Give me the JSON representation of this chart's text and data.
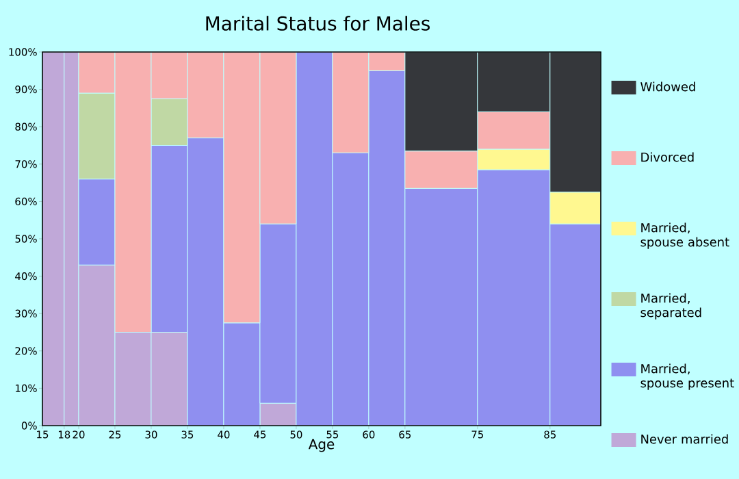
{
  "chart_data": {
    "type": "bar",
    "stacked": true,
    "title": "Marital Status for Males",
    "xlabel": "Age",
    "x": [
      16.5,
      19,
      22.5,
      27.5,
      32.5,
      37.5,
      42.5,
      47.5,
      52.5,
      57.5,
      62.5,
      70,
      80,
      88.5
    ],
    "xlim": [
      15,
      92
    ],
    "xticks": [
      15,
      18,
      20,
      25,
      30,
      35,
      40,
      45,
      50,
      55,
      60,
      65,
      75,
      85
    ],
    "ylim": [
      0,
      100
    ],
    "yticks": [
      {
        "value": 0,
        "label": "0%"
      },
      {
        "value": 10,
        "label": "10%"
      },
      {
        "value": 20,
        "label": "20%"
      },
      {
        "value": 30,
        "label": "30%"
      },
      {
        "value": 40,
        "label": "40%"
      },
      {
        "value": 50,
        "label": "50%"
      },
      {
        "value": 60,
        "label": "60%"
      },
      {
        "value": 70,
        "label": "70%"
      },
      {
        "value": 80,
        "label": "80%"
      },
      {
        "value": 90,
        "label": "90%"
      },
      {
        "value": 100,
        "label": "100%"
      }
    ],
    "legend": "right",
    "grid": false,
    "series": [
      {
        "name": "Never married",
        "color": "#c0a8d8",
        "values": [
          100,
          100,
          43,
          25,
          25,
          0,
          0,
          6,
          0,
          0,
          0,
          0,
          0,
          0
        ]
      },
      {
        "name": "Married, spouse present",
        "color": "#8f8ff0",
        "values": [
          0,
          0,
          23,
          0,
          50,
          77,
          27.5,
          48,
          100,
          73,
          95,
          63.5,
          68.5,
          54
        ]
      },
      {
        "name": "Married, separated",
        "color": "#c0d8a4",
        "values": [
          0,
          0,
          23,
          0,
          12.5,
          0,
          0,
          0,
          0,
          0,
          0,
          0,
          0,
          0
        ]
      },
      {
        "name": "Married, spouse absent",
        "color": "#fff890",
        "values": [
          0,
          0,
          0,
          0,
          0,
          0,
          0,
          0,
          0,
          0,
          0,
          0,
          5.5,
          8.5
        ]
      },
      {
        "name": "Divorced",
        "color": "#f8b0b0",
        "values": [
          0,
          0,
          11,
          75,
          12.5,
          23,
          72.5,
          46,
          0,
          27,
          5,
          10,
          10,
          0
        ]
      },
      {
        "name": "Widowed",
        "color": "#35373b",
        "values": [
          0,
          0,
          0,
          0,
          0,
          0,
          0,
          0,
          0,
          0,
          0,
          26.5,
          16,
          37.5
        ]
      }
    ]
  }
}
